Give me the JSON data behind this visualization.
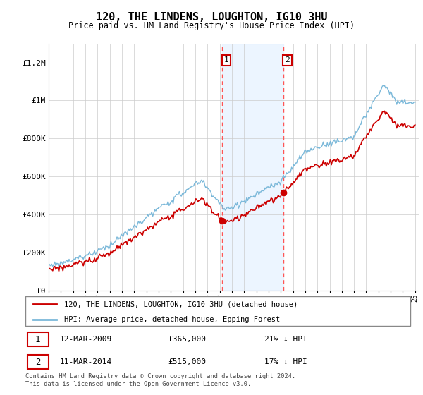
{
  "title": "120, THE LINDENS, LOUGHTON, IG10 3HU",
  "subtitle": "Price paid vs. HM Land Registry's House Price Index (HPI)",
  "hpi_label": "HPI: Average price, detached house, Epping Forest",
  "price_label": "120, THE LINDENS, LOUGHTON, IG10 3HU (detached house)",
  "sale1_date": "12-MAR-2009",
  "sale1_price": 365000,
  "sale1_pct": "21% ↓ HPI",
  "sale1_label": "1",
  "sale2_date": "11-MAR-2014",
  "sale2_price": 515000,
  "sale2_pct": "17% ↓ HPI",
  "sale2_label": "2",
  "footer": "Contains HM Land Registry data © Crown copyright and database right 2024.\nThis data is licensed under the Open Government Licence v3.0.",
  "hpi_color": "#7ab8d9",
  "price_color": "#cc0000",
  "shade_color": "#ddeeff",
  "vline_color": "#ff5555",
  "ylim": [
    0,
    1300000
  ],
  "yticks": [
    0,
    200000,
    400000,
    600000,
    800000,
    1000000,
    1200000
  ],
  "ytick_labels": [
    "£0",
    "£200K",
    "£400K",
    "£600K",
    "£800K",
    "£1M",
    "£1.2M"
  ],
  "sale1_t": 2009.19,
  "sale2_t": 2014.19
}
